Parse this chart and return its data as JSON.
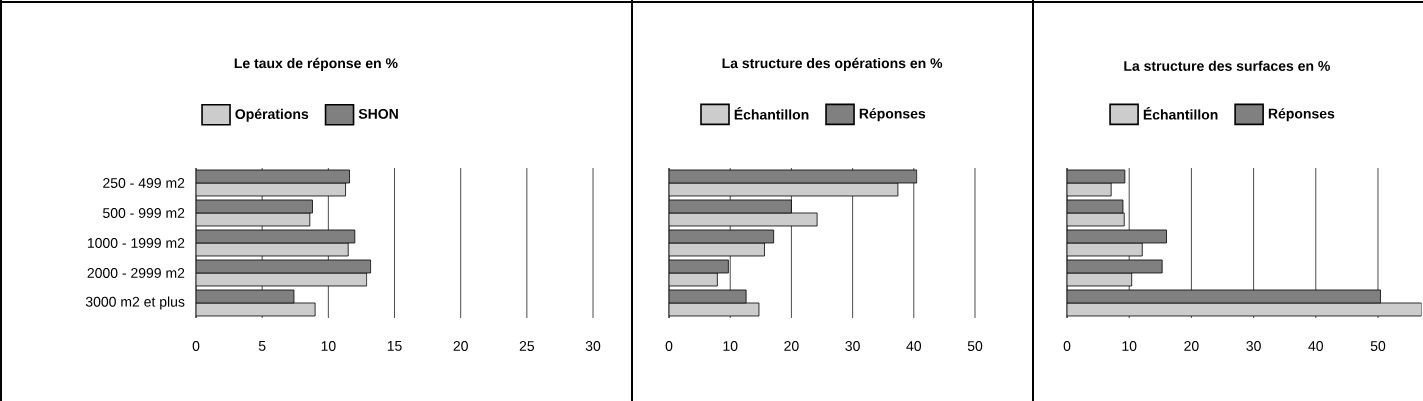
{
  "chart_data": [
    {
      "type": "bar",
      "orientation": "horizontal",
      "title": "Le taux de réponse en %",
      "categories": [
        "250 - 499 m2",
        "500 - 999 m2",
        "1000 - 1999 m2",
        "2000 - 2999 m2",
        "3000 m2 et plus"
      ],
      "series": [
        {
          "name": "Opérations",
          "color": "#cccccc",
          "values": [
            11.3,
            8.6,
            11.5,
            12.9,
            9.0
          ]
        },
        {
          "name": "SHON",
          "color": "#808080",
          "values": [
            11.6,
            8.8,
            12.0,
            13.2,
            7.4
          ]
        }
      ],
      "xlim": [
        0,
        30
      ],
      "xticks": [
        0,
        5,
        10,
        15,
        20,
        25,
        30
      ],
      "grid": "x",
      "legend": "top"
    },
    {
      "type": "bar",
      "orientation": "horizontal",
      "title": "La structure des opérations en %",
      "categories": [
        null,
        null,
        null,
        null,
        null
      ],
      "series": [
        {
          "name": "Échantillon",
          "color": "#cccccc",
          "values": [
            37.4,
            24.2,
            15.6,
            7.9,
            14.7
          ]
        },
        {
          "name": "Réponses",
          "color": "#808080",
          "values": [
            40.5,
            20.0,
            17.1,
            9.7,
            12.6
          ]
        }
      ],
      "xlim": [
        0,
        50
      ],
      "xticks": [
        0,
        10,
        20,
        30,
        40,
        50
      ],
      "grid": "x",
      "legend": "top",
      "tick_labels": "x"
    },
    {
      "type": "bar",
      "orientation": "horizontal",
      "title": "La structure des surfaces en %",
      "categories": [
        null,
        null,
        null,
        null,
        null
      ],
      "series": [
        {
          "name": "Échantillon",
          "color": "#cccccc",
          "values": [
            7.1,
            9.2,
            12.1,
            10.4,
            57.0
          ]
        },
        {
          "name": "Réponses",
          "color": "#808080",
          "values": [
            9.3,
            9.0,
            16.0,
            15.3,
            50.4
          ]
        }
      ],
      "xlim": [
        0,
        57
      ],
      "xticks": [
        0,
        10,
        20,
        30,
        40,
        50
      ],
      "grid": "x",
      "legend": "top",
      "tick_labels": "x"
    }
  ]
}
